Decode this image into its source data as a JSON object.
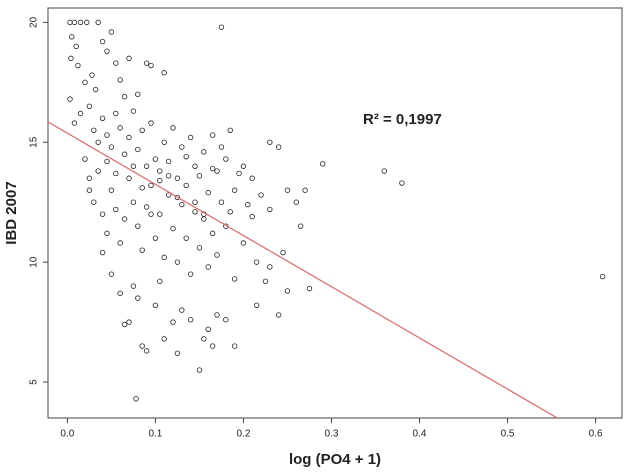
{
  "chart_data": {
    "type": "scatter",
    "xlabel": "log (PO4 + 1)",
    "ylabel": "IBD 2007",
    "annotation": "R² = 0,1997",
    "xlim": [
      -0.022,
      0.63
    ],
    "ylim": [
      3.5,
      20.6
    ],
    "xticks": [
      {
        "value": 0,
        "label": "0.0"
      },
      {
        "value": 0.1,
        "label": "0.1"
      },
      {
        "value": 0.2,
        "label": "0.2"
      },
      {
        "value": 0.3,
        "label": "0.3"
      },
      {
        "value": 0.4,
        "label": "0.4"
      },
      {
        "value": 0.5,
        "label": "0.5"
      },
      {
        "value": 0.6,
        "label": "0.6"
      }
    ],
    "yticks": [
      5,
      10,
      15,
      20
    ],
    "point_color": "#222222",
    "regression": {
      "intercept": 15.38,
      "slope": -21.35,
      "color": "#e06666"
    },
    "x": [
      0.003,
      0.008,
      0.015,
      0.022,
      0.035,
      0.005,
      0.01,
      0.004,
      0.012,
      0.02,
      0.028,
      0.032,
      0.04,
      0.045,
      0.05,
      0.055,
      0.06,
      0.065,
      0.07,
      0.08,
      0.09,
      0.095,
      0.11,
      0.175,
      0.003,
      0.008,
      0.015,
      0.025,
      0.03,
      0.035,
      0.04,
      0.045,
      0.05,
      0.055,
      0.06,
      0.065,
      0.07,
      0.075,
      0.08,
      0.085,
      0.09,
      0.095,
      0.1,
      0.105,
      0.11,
      0.115,
      0.12,
      0.125,
      0.13,
      0.135,
      0.14,
      0.145,
      0.15,
      0.155,
      0.16,
      0.165,
      0.17,
      0.175,
      0.18,
      0.185,
      0.19,
      0.2,
      0.21,
      0.22,
      0.23,
      0.24,
      0.25,
      0.26,
      0.265,
      0.27,
      0.29,
      0.36,
      0.38,
      0.608,
      0.02,
      0.025,
      0.03,
      0.035,
      0.04,
      0.045,
      0.05,
      0.055,
      0.06,
      0.065,
      0.07,
      0.075,
      0.08,
      0.085,
      0.09,
      0.095,
      0.1,
      0.105,
      0.11,
      0.115,
      0.12,
      0.125,
      0.13,
      0.135,
      0.14,
      0.145,
      0.15,
      0.155,
      0.16,
      0.165,
      0.17,
      0.18,
      0.19,
      0.2,
      0.21,
      0.215,
      0.225,
      0.23,
      0.245,
      0.25,
      0.04,
      0.05,
      0.06,
      0.065,
      0.07,
      0.075,
      0.08,
      0.085,
      0.09,
      0.1,
      0.105,
      0.11,
      0.12,
      0.125,
      0.13,
      0.14,
      0.15,
      0.155,
      0.16,
      0.165,
      0.17,
      0.18,
      0.19,
      0.215,
      0.24,
      0.078,
      0.025,
      0.045,
      0.055,
      0.075,
      0.085,
      0.095,
      0.105,
      0.115,
      0.125,
      0.135,
      0.145,
      0.155,
      0.165,
      0.175,
      0.185,
      0.195,
      0.205,
      0.275,
      0.23
    ],
    "values": [
      20,
      20,
      20,
      20,
      20,
      19.4,
      19,
      18.5,
      18.2,
      17.5,
      17.8,
      17.2,
      19.2,
      18.8,
      19.6,
      18.3,
      17.6,
      16.9,
      18.5,
      17,
      18.3,
      18.2,
      17.9,
      19.8,
      16.8,
      15.8,
      16.2,
      16.5,
      15.5,
      15,
      16,
      15.3,
      14.8,
      16.2,
      15.6,
      14.5,
      15.2,
      16.3,
      14.7,
      15.5,
      14,
      15.8,
      14.3,
      13.8,
      15,
      14.2,
      15.6,
      13.5,
      14.8,
      13.2,
      15.2,
      14,
      13.6,
      14.6,
      12.9,
      15.3,
      13.8,
      12.5,
      14.3,
      15.5,
      13,
      14,
      13.5,
      12.8,
      15,
      14.8,
      13,
      12.5,
      11.5,
      13,
      14.1,
      13.8,
      13.3,
      9.4,
      14.3,
      13.5,
      12.5,
      13.8,
      12,
      11.2,
      13,
      12.2,
      10.8,
      11.8,
      13.5,
      12.5,
      11.5,
      10.5,
      12.3,
      13.2,
      11,
      12,
      10.2,
      12.8,
      11.4,
      10,
      12.4,
      11,
      9.5,
      12.1,
      10.6,
      11.8,
      9.8,
      11.2,
      10.3,
      11.5,
      9.3,
      10.8,
      11.9,
      10,
      9.2,
      12.2,
      10.4,
      8.8,
      10.4,
      9.5,
      8.7,
      7.4,
      7.5,
      9,
      8.5,
      6.5,
      6.3,
      8.2,
      9.2,
      6.8,
      7.5,
      6.2,
      8,
      7.6,
      5.5,
      6.8,
      7.2,
      6.5,
      7.8,
      7.6,
      6.5,
      8.2,
      7.8,
      4.3,
      13,
      14.2,
      13.7,
      14,
      13.1,
      12,
      13.4,
      13.6,
      12.7,
      14.4,
      12.5,
      12,
      13.9,
      14.8,
      12.1,
      13.7,
      12.4,
      8.9,
      9.8
    ]
  }
}
